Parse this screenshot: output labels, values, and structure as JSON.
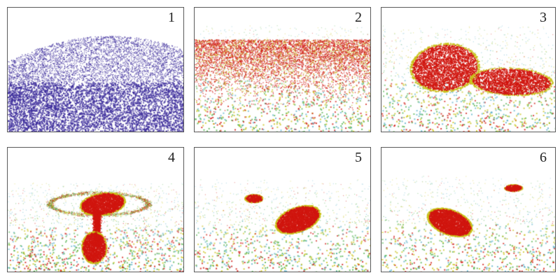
{
  "panels": [
    {
      "label": "1"
    },
    {
      "label": "2"
    },
    {
      "label": "3"
    },
    {
      "label": "4"
    },
    {
      "label": "5"
    },
    {
      "label": "6"
    }
  ],
  "colors": {
    "particle_blue": "#3a2a9a",
    "particle_red": "#d0160f",
    "particle_yellow": "#c9c21a",
    "particle_green": "#4fb04a",
    "particle_cyan": "#5ab0c8",
    "panel_border": "#5a5a5a",
    "background": "#ffffff"
  }
}
